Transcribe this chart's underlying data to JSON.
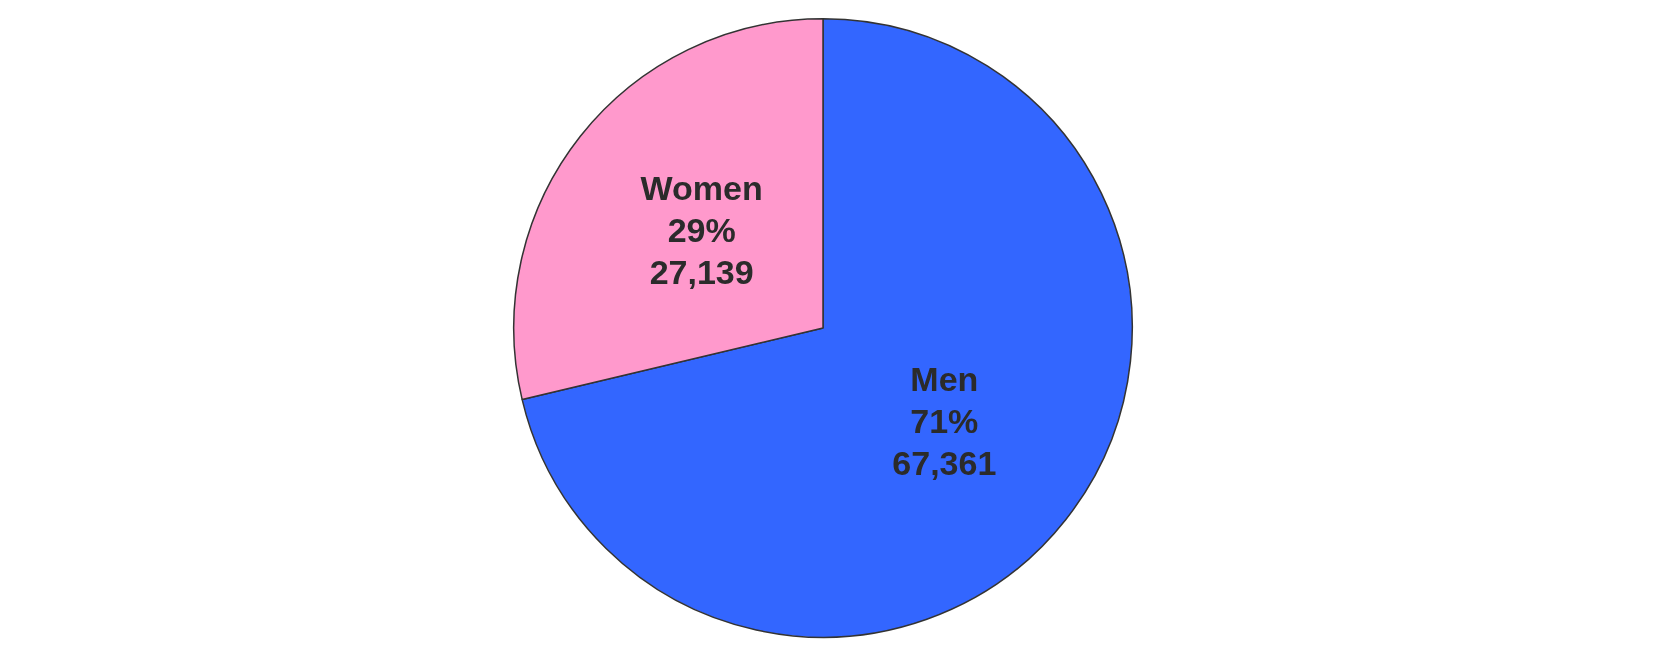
{
  "chart_data": {
    "type": "pie",
    "categories": [
      "Men",
      "Women"
    ],
    "values": [
      67361,
      27139
    ],
    "colors": [
      "#3366ff",
      "#ff99cc"
    ],
    "value_labels": [
      "71%\n67,361",
      "29%\n27,139"
    ]
  }
}
